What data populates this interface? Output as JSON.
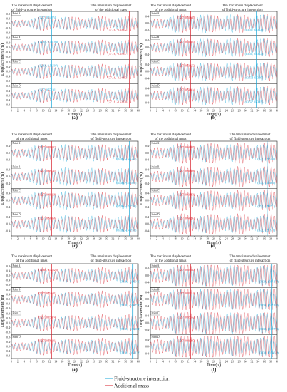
{
  "chart_data": {
    "type": "line",
    "x_axis_label": "Time(s)",
    "y_axis_label": "Displacement(m)",
    "x_ticks": [
      "0",
      "2",
      "4",
      "6",
      "8",
      "10",
      "12",
      "14",
      "16",
      "18",
      "20",
      "22",
      "24",
      "26",
      "28",
      "30",
      "32",
      "34",
      "36",
      "38",
      "40"
    ],
    "y_ticks": [
      "0.8",
      "0.4",
      "0.0",
      "-0.4",
      "-0.8"
    ],
    "xlim": [
      0,
      40
    ],
    "legend": [
      {
        "name": "Fluid-structure interaction",
        "color": "#1aa7d8"
      },
      {
        "name": "Additional mass",
        "color": "#d71e2a"
      }
    ],
    "colors": {
      "fsi": "#1aa7d8",
      "am": "#d71e2a"
    },
    "panels": [
      {
        "label": "(a)",
        "title_left": "The maximum displacement\nof fluid-structure interaction",
        "title_right": "The maximum displacement\nof the additional mass",
        "ylim": [
          -0.9,
          0.9
        ],
        "marker_lines": {
          "fsi_t": 12.7,
          "am_t": 37.16
        },
        "rows": [
          {
            "point": "Point A",
            "fsi": "(12.7, 0.54874)",
            "am": "(37.16, -0.63652)"
          },
          {
            "point": "Point B",
            "fsi": "(12.68, 0.56194)",
            "am": "(37.16, -0.65957)"
          },
          {
            "point": "Point C",
            "fsi": "(12.68, 0.56597)",
            "am": "(37.16, -0.64693)"
          },
          {
            "point": "Point D",
            "fsi": "(12.7, 0.57191)",
            "am": "(37.16, -0.62630)"
          }
        ]
      },
      {
        "label": "(b)",
        "title_left": "The maximum displacement\nof the additional mass",
        "title_right": "The maximum displacement\nof fluid-structure interaction",
        "ylim": [
          -0.6,
          0.6
        ],
        "marker_lines": {
          "am_t": 12.7,
          "fsi_t": 33.56
        },
        "rows": [
          {
            "point": "Point A",
            "am": "(12.7, 0.53635)",
            "fsi": "(33.56, 0.53578)"
          },
          {
            "point": "Point B",
            "am": "(12.7, 0.53523)",
            "fsi": "(33.56, 0.53373)"
          },
          {
            "point": "Point C",
            "am": "(12.7, 0.53653)",
            "fsi": "(33.56, 0.53467)"
          },
          {
            "point": "Point D",
            "am": "(12.7, 0.54014)",
            "fsi": "(33.56, 0.53915)"
          }
        ]
      },
      {
        "label": "(c)",
        "title_left": "The maximum displacement\nof the additional mass",
        "title_right": "The maximum displacement\nof fluid-structure interaction",
        "ylim": [
          -0.6,
          0.6
        ],
        "marker_lines": {
          "am_t": 12.7,
          "fsi_t": 37.16
        },
        "rows": [
          {
            "point": "Point A",
            "am": "(12.7, 0.49032)",
            "fsi": "(37.16, -0.49741)"
          },
          {
            "point": "Point B",
            "am": "(12.7, 0.49145)",
            "fsi": "(37.16, -0.52509)"
          },
          {
            "point": "Point C",
            "am": "(12.7, 0.49468)",
            "fsi": "(37.16, -0.52736)"
          },
          {
            "point": "Point D",
            "am": "(12.7, 0.50056)",
            "fsi": "(37.16, -0.49916)"
          }
        ]
      },
      {
        "label": "(d)",
        "title_left": "The maximum displacement\nof the additional mass",
        "title_right": "The maximum displacement\nof fluid-structure interaction",
        "ylim": [
          -0.6,
          0.6
        ],
        "marker_lines": {
          "am_t": 12.7,
          "fsi_t": 37.1
        },
        "rows": [
          {
            "point": "Point A",
            "am": "(12.7, 0.63825)",
            "fsi": "(37.1, 0.52308)"
          },
          {
            "point": "Point B",
            "am": "(12.7, 0.63698)",
            "fsi": "(37.1, 0.52186)"
          },
          {
            "point": "Point C",
            "am": "(12.7, 0.63850)",
            "fsi": "(37.1, 0.50271)"
          },
          {
            "point": "Point D",
            "am": "(12.7, 0.64247)",
            "fsi": "(37.1, 0.51873)"
          }
        ]
      },
      {
        "label": "(e)",
        "title_left": "The maximum displacement\nof the additional mass",
        "title_right": "The maximum displacement\nof fluid-structure interaction",
        "ylim": [
          -0.9,
          0.9
        ],
        "marker_lines": {
          "am_t": 12.7,
          "fsi_t": 38.36
        },
        "rows": [
          {
            "point": "Point A",
            "am": "(12.68, 0.72526)",
            "fsi": "(38.36, -0.60041)"
          },
          {
            "point": "Point B",
            "am": "(12.7, 0.74631)",
            "fsi": "(38.36, -0.56723)"
          },
          {
            "point": "Point C",
            "am": "(12.7, 0.75074)",
            "fsi": "(38.36, -0.56904)"
          },
          {
            "point": "Point D",
            "am": "(12.7, 0.76401)",
            "fsi": "(38.36, -0.61122)"
          }
        ]
      },
      {
        "label": "(f)",
        "title_left": "The maximum displacement\nof the additional mass",
        "title_right": "The maximum displacement\nof fluid-structure interaction",
        "ylim": [
          -0.6,
          0.6
        ],
        "marker_lines": {
          "am_t": 12.7,
          "fsi_t": 38.36
        },
        "rows": [
          {
            "point": "Point A",
            "am": "(12.7, 0.82537)",
            "fsi": "(38.36, -0.61177)"
          },
          {
            "point": "Point B",
            "am": "(12.7, 0.82114)",
            "fsi": "(38.36, -0.63180)"
          },
          {
            "point": "Point C",
            "am": "(12.7, 0.82552)",
            "fsi": "(38.36, -0.62775)"
          },
          {
            "point": "Point D",
            "am": "(12.7, 0.82297)",
            "fsi": "(38.36, -0.56612)"
          }
        ]
      }
    ]
  }
}
